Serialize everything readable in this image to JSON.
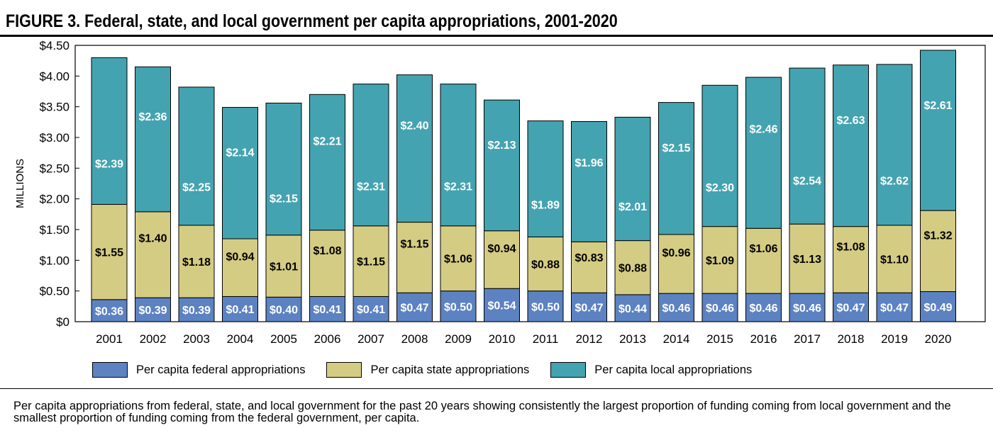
{
  "figure": {
    "title": "FIGURE 3. Federal, state, and local government per capita appropriations, 2001-2020",
    "caption": "Per capita appropriations from federal, state, and local government for the past 20 years showing consistently the largest proportion of funding coming from local government and the smallest proportion of funding coming from the federal government, per capita."
  },
  "colors": {
    "federal": "#5c82c2",
    "state": "#d5cc84",
    "local": "#44a3b0"
  },
  "chart_data": {
    "type": "bar",
    "stacked": true,
    "title": "",
    "xlabel": "",
    "ylabel": "MILLIONS",
    "ylim": [
      0,
      4.5
    ],
    "yticks": [
      "$0",
      "$0.50",
      "$1.00",
      "$1.50",
      "$2.00",
      "$2.50",
      "$3.00",
      "$3.50",
      "$4.00",
      "$4.50"
    ],
    "ytick_values": [
      0,
      0.5,
      1,
      1.5,
      2,
      2.5,
      3,
      3.5,
      4,
      4.5
    ],
    "grid": false,
    "legend_position": "bottom",
    "categories": [
      "2001",
      "2002",
      "2003",
      "2004",
      "2005",
      "2006",
      "2007",
      "2008",
      "2009",
      "2010",
      "2011",
      "2012",
      "2013",
      "2014",
      "2015",
      "2016",
      "2017",
      "2018",
      "2019",
      "2020"
    ],
    "series": [
      {
        "key": "federal",
        "name": "Per capita federal appropriations",
        "values": [
          0.36,
          0.39,
          0.39,
          0.41,
          0.4,
          0.41,
          0.41,
          0.47,
          0.5,
          0.54,
          0.5,
          0.47,
          0.44,
          0.46,
          0.46,
          0.46,
          0.46,
          0.47,
          0.47,
          0.49
        ],
        "labels": [
          "$0.36",
          "$0.39",
          "$0.39",
          "$0.41",
          "$0.40",
          "$0.41",
          "$0.41",
          "$0.47",
          "$0.50",
          "$0.54",
          "$0.50",
          "$0.47",
          "$0.44",
          "$0.46",
          "$0.46",
          "$0.46",
          "$0.46",
          "$0.47",
          "$0.47",
          "$0.49"
        ]
      },
      {
        "key": "state",
        "name": "Per capita state appropriations",
        "values": [
          1.55,
          1.4,
          1.18,
          0.94,
          1.01,
          1.08,
          1.15,
          1.15,
          1.06,
          0.94,
          0.88,
          0.83,
          0.88,
          0.96,
          1.09,
          1.06,
          1.13,
          1.08,
          1.1,
          1.32
        ],
        "labels": [
          "$1.55",
          "$1.40",
          "$1.18",
          "$0.94",
          "$1.01",
          "$1.08",
          "$1.15",
          "$1.15",
          "$1.06",
          "$0.94",
          "$0.88",
          "$0.83",
          "$0.88",
          "$0.96",
          "$1.09",
          "$1.06",
          "$1.13",
          "$1.08",
          "$1.10",
          "$1.32"
        ]
      },
      {
        "key": "local",
        "name": "Per capita local appropriations",
        "values": [
          2.39,
          2.36,
          2.25,
          2.14,
          2.15,
          2.21,
          2.31,
          2.4,
          2.31,
          2.13,
          1.89,
          1.96,
          2.01,
          2.15,
          2.3,
          2.46,
          2.54,
          2.63,
          2.62,
          2.61
        ],
        "labels": [
          "$2.39",
          "$2.36",
          "$2.25",
          "$2.14",
          "$2.15",
          "$2.21",
          "$2.31",
          "$2.40",
          "$2.31",
          "$2.13",
          "$1.89",
          "$1.96",
          "$2.01",
          "$2.15",
          "$2.30",
          "$2.46",
          "$2.54",
          "$2.63",
          "$2.62",
          "$2.61"
        ]
      }
    ]
  }
}
